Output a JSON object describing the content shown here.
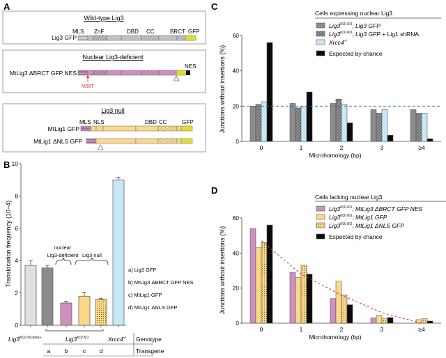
{
  "panel_labels": {
    "a": "A",
    "b": "B",
    "c": "C",
    "d": "D"
  },
  "colors": {
    "gray_domain": "#c0c0c2",
    "pink": "#cf8fc0",
    "orange": "#fcd98a",
    "gfp": "#dde030",
    "nes": "#111111",
    "light_gray_bar": "#e0e0e0",
    "dark_gray_bar": "#8c8c8c",
    "light_blue": "#c9e8f7",
    "black": "#0a0a0a",
    "blue_dash": "#2a6fa8",
    "red_dash": "#d43030",
    "mutation_red": "#e03a3a"
  },
  "panel_a": {
    "boxes": [
      {
        "title": "Wild-type Lig3",
        "constructs": [
          {
            "name": "Lig3 GFP",
            "domains": [
              "MLS",
              "ZnF",
              "DBD",
              "CC",
              "BRCT",
              "GFP"
            ]
          }
        ]
      },
      {
        "title": "Nuclear Lig3-deficient",
        "constructs": [
          {
            "name": "MtLig3 ΔBRCT GFP NES",
            "domains": [
              "NES"
            ],
            "mutation": "M88T"
          }
        ]
      },
      {
        "title": "Lig3 null",
        "constructs": [
          {
            "name": "MtLig1 GFP",
            "domains": [
              "MLS",
              "NLS",
              "DBD",
              "CC",
              "GFP"
            ]
          },
          {
            "name": "MtLig1 ΔNLS GFP",
            "domains": []
          }
        ]
      }
    ]
  },
  "chart_data": [
    {
      "id": "B",
      "type": "bar",
      "title": "",
      "xlabel": "",
      "ylabel": "Translocation   frequency (10−4)",
      "ylim": [
        0,
        10
      ],
      "yticks": [
        0,
        2,
        4,
        6,
        8,
        10
      ],
      "categories": [
        "Lig3 KO/cKOneo+",
        "a",
        "b",
        "c",
        "d",
        "Xrcc4-/-"
      ],
      "values": [
        3.7,
        3.55,
        1.38,
        1.8,
        1.6,
        9.0
      ],
      "errors": [
        0.3,
        0.15,
        0.1,
        0.25,
        0.07,
        0.15
      ],
      "bar_styles": [
        "light_gray",
        "dark_gray",
        "pink",
        "orange",
        "orange_dotted",
        "light_blue"
      ],
      "brackets": [
        {
          "label_line1": "nuclear",
          "label_line2": "Lig3-deficient",
          "covers": [
            "b"
          ]
        },
        {
          "label_line1": "",
          "label_line2": "Lig3 null",
          "covers": [
            "c",
            "d"
          ]
        }
      ],
      "legend": [
        "a) Lig3 GFP",
        "b) MtLig3 ΔBRCT GFP NES",
        "c) MtLig1 GFP",
        "d) MtLig1 ΔNLS GFP"
      ],
      "table": {
        "genotype_label": "Genotype",
        "transgene_label": "Transgene",
        "genotypes": [
          {
            "base": "Lig3",
            "sup": "KO/ cKOneo+"
          },
          {
            "base": "Lig3",
            "sup": "KO/ KO"
          },
          {
            "base": "Xrcc4",
            "sup": "-/-"
          }
        ],
        "transgenes": [
          "a",
          "b",
          "c",
          "d"
        ]
      }
    },
    {
      "id": "C",
      "type": "bar",
      "title": "Cells expressing nuclear Lig3",
      "xlabel": "Microhomology (bp)",
      "ylabel": "Junctions without insertions (%)",
      "ylim": [
        0,
        60
      ],
      "yticks": [
        0,
        20,
        40,
        60
      ],
      "categories": [
        "0",
        "1",
        "2",
        "3",
        "≥4"
      ],
      "reference_line": 20,
      "series": [
        {
          "name": "Lig3KO/KO; Lig3 GFP",
          "legend_base": "Lig3",
          "legend_sup": "KO/ KO",
          "legend_rest": "; Lig3 GFP",
          "legend_extra": "",
          "style": "dark_gray",
          "values": [
            20,
            21.5,
            21.5,
            18,
            18
          ]
        },
        {
          "name": "Lig3KO/KO; Lig3 GFP + Lig1 shRNA",
          "legend_base": "Lig3",
          "legend_sup": "KO/ KO",
          "legend_rest": "; Lig3 GFP",
          "legend_extra": " + Lig1 shRNA",
          "style": "hatched",
          "values": [
            21,
            19,
            24,
            16,
            16
          ]
        },
        {
          "name": "Xrcc4-/-",
          "legend_base": "Xrcc4",
          "legend_sup": "-/-",
          "legend_rest": "",
          "legend_extra": "",
          "style": "light_blue",
          "values": [
            22.5,
            19.5,
            21,
            18,
            16
          ]
        },
        {
          "name": "Expected by chance",
          "legend_base": "",
          "legend_sup": "",
          "legend_rest": "",
          "legend_extra": "Expected by chance",
          "style": "black",
          "values": [
            56,
            28,
            10.5,
            3.5,
            1.5
          ]
        }
      ]
    },
    {
      "id": "D",
      "type": "bar",
      "title": "Cells lacking nuclear Lig3",
      "xlabel": "Microhomology (bp)",
      "ylabel": "Junctions without insertions (%)",
      "ylim": [
        0,
        60
      ],
      "yticks": [
        0,
        20,
        40,
        60
      ],
      "categories": [
        "0",
        "1",
        "2",
        "3",
        "≥4"
      ],
      "fit_curve": [
        47,
        28,
        16,
        6,
        0
      ],
      "series": [
        {
          "name": "Lig3KO/KO; MtLig3 ΔBRCT GFP NES",
          "legend_base": "Lig3",
          "legend_sup": "KO/ KO",
          "legend_rest": "; MtLig3 ΔBRCT GFP NES",
          "legend_extra": "",
          "style": "pink",
          "values": [
            54,
            29,
            14,
            3,
            0
          ]
        },
        {
          "name": "Lig3KO/KO; MtLig1 GFP",
          "legend_base": "Lig3",
          "legend_sup": "KO/ KO",
          "legend_rest": "; MtLig1 GFP",
          "legend_extra": "",
          "style": "orange",
          "values": [
            43,
            26,
            24,
            4.5,
            2
          ]
        },
        {
          "name": "Lig3KO/KO; MtLig1 ΔNLS GFP",
          "legend_base": "Lig3",
          "legend_sup": "KO/ KO",
          "legend_rest": "; MtLig1 ΔNLS GFP",
          "legend_extra": "",
          "style": "orange_dotted",
          "values": [
            46,
            33,
            16,
            2.5,
            2.5
          ]
        },
        {
          "name": "Expected by chance",
          "legend_base": "",
          "legend_sup": "",
          "legend_rest": "",
          "legend_extra": "Expected by chance",
          "style": "black",
          "values": [
            56,
            28,
            10.5,
            3.2,
            1.2
          ]
        }
      ]
    }
  ]
}
